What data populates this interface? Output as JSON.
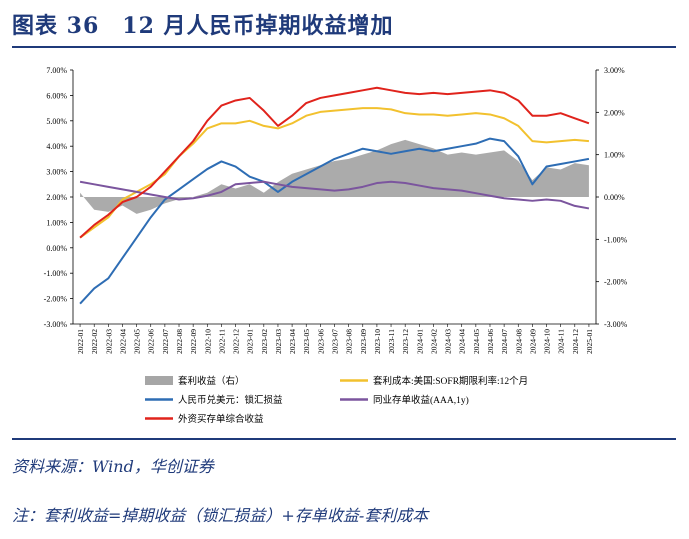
{
  "figure": {
    "title": "图表 36　12 月人民币掉期收益增加",
    "source": "资料来源：Wind，华创证券",
    "note": "注：套利收益=掉期收益（锁汇损益）+存单收益-套利成本"
  },
  "colors": {
    "accent": "#1f3a7a",
    "carry": "#a6a6a6",
    "funding": "#f2c12e",
    "fx": "#2e6db4",
    "ncd": "#7b559e",
    "foreign": "#e0231c"
  },
  "chart_data": {
    "type": "line",
    "title": "",
    "xlabel": "",
    "ylabel": "",
    "y_left": {
      "ylim": [
        -3.0,
        7.0
      ],
      "ticks": [
        "-3.00%",
        "-2.00%",
        "-1.00%",
        "0.00%",
        "1.00%",
        "2.00%",
        "3.00%",
        "4.00%",
        "5.00%",
        "6.00%",
        "7.00%"
      ]
    },
    "y_right": {
      "ylim": [
        -3.0,
        3.0
      ],
      "ticks": [
        "-3.00%",
        "-2.00%",
        "-1.00%",
        "0.00%",
        "1.00%",
        "2.00%",
        "3.00%"
      ]
    },
    "categories": [
      "2022-01",
      "2022-02",
      "2022-03",
      "2022-04",
      "2022-05",
      "2022-06",
      "2022-07",
      "2022-08",
      "2022-09",
      "2022-10",
      "2022-11",
      "2022-12",
      "2023-01",
      "2023-02",
      "2023-03",
      "2023-04",
      "2023-05",
      "2023-06",
      "2023-07",
      "2023-08",
      "2023-09",
      "2023-10",
      "2023-11",
      "2023-12",
      "2024-01",
      "2024-02",
      "2024-03",
      "2024-04",
      "2024-05",
      "2024-06",
      "2024-07",
      "2024-08",
      "2024-09",
      "2024-10",
      "2024-11",
      "2024-12",
      "2025-01"
    ],
    "legend_position": "bottom",
    "series": [
      {
        "name": "套利收益（右）",
        "style": "area",
        "axis": "right",
        "values": [
          0.1,
          -0.3,
          -0.35,
          -0.2,
          -0.4,
          -0.3,
          -0.15,
          -0.05,
          0.0,
          0.1,
          0.3,
          0.2,
          0.3,
          0.1,
          0.35,
          0.55,
          0.65,
          0.75,
          0.85,
          0.9,
          1.0,
          1.1,
          1.25,
          1.35,
          1.25,
          1.15,
          1.0,
          1.05,
          1.0,
          1.05,
          1.1,
          0.85,
          0.4,
          0.7,
          0.65,
          0.8,
          0.75
        ]
      },
      {
        "name": "套利成本:美国:SOFR期限利率:12个月",
        "style": "line",
        "axis": "left",
        "values": [
          0.4,
          0.8,
          1.2,
          1.9,
          2.2,
          2.5,
          2.9,
          3.6,
          4.1,
          4.7,
          4.9,
          4.9,
          5.0,
          4.8,
          4.7,
          4.9,
          5.2,
          5.35,
          5.4,
          5.45,
          5.5,
          5.5,
          5.45,
          5.3,
          5.25,
          5.25,
          5.2,
          5.25,
          5.3,
          5.25,
          5.1,
          4.8,
          4.2,
          4.15,
          4.2,
          4.25,
          4.2
        ]
      },
      {
        "name": "人民币兑美元：锁汇损益",
        "style": "line",
        "axis": "left",
        "values": [
          -2.2,
          -1.6,
          -1.2,
          -0.4,
          0.4,
          1.2,
          1.9,
          2.3,
          2.7,
          3.1,
          3.4,
          3.2,
          2.8,
          2.6,
          2.2,
          2.6,
          2.9,
          3.2,
          3.5,
          3.7,
          3.9,
          3.8,
          3.7,
          3.8,
          3.9,
          3.8,
          3.9,
          4.0,
          4.1,
          4.3,
          4.2,
          3.6,
          2.5,
          3.2,
          3.3,
          3.4,
          3.5
        ]
      },
      {
        "name": "同业存单收益(AAA,1y)",
        "style": "line",
        "axis": "left",
        "values": [
          2.6,
          2.5,
          2.4,
          2.3,
          2.2,
          2.1,
          2.0,
          1.9,
          1.95,
          2.05,
          2.2,
          2.5,
          2.55,
          2.6,
          2.5,
          2.4,
          2.35,
          2.3,
          2.25,
          2.3,
          2.4,
          2.55,
          2.6,
          2.55,
          2.45,
          2.35,
          2.3,
          2.25,
          2.15,
          2.05,
          1.95,
          1.9,
          1.85,
          1.9,
          1.85,
          1.65,
          1.55
        ]
      },
      {
        "name": "外资买存单综合收益",
        "style": "line",
        "axis": "left",
        "values": [
          0.4,
          0.9,
          1.3,
          1.8,
          2.0,
          2.4,
          3.0,
          3.6,
          4.2,
          5.0,
          5.6,
          5.8,
          5.9,
          5.4,
          4.8,
          5.2,
          5.7,
          5.9,
          6.0,
          6.1,
          6.2,
          6.3,
          6.2,
          6.1,
          6.05,
          6.1,
          6.05,
          6.1,
          6.15,
          6.2,
          6.1,
          5.8,
          5.2,
          5.2,
          5.3,
          5.1,
          4.9
        ]
      }
    ]
  }
}
